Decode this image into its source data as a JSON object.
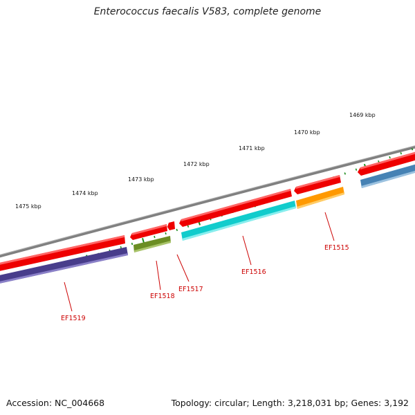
{
  "title": "Enterococcus faecalis V583, complete genome",
  "footer": {
    "accession": "Accession: NC_004668",
    "summary": "Topology: circular; Length: 3,218,031 bp; Genes: 3,192"
  },
  "scale_labels": [
    "1469 kbp",
    "1470 kbp",
    "1471 kbp",
    "1472 kbp",
    "1473 kbp",
    "1474 kbp",
    "1475 kbp"
  ],
  "gene_labels": [
    "EF1515",
    "EF1516",
    "EF1517",
    "EF1518",
    "EF1519"
  ],
  "colors": {
    "backbone": "#808080",
    "cds": "#ee0000",
    "EF1515": "#ff9900",
    "EF1516": "#11cccc",
    "EF1517": "#ee0000",
    "EF1518": "#6b8e23",
    "EF1519": "#483d8b",
    "right_edge_gene": "#4682b4",
    "ticks": "#1a8a1a",
    "label": "#cc0000"
  }
}
